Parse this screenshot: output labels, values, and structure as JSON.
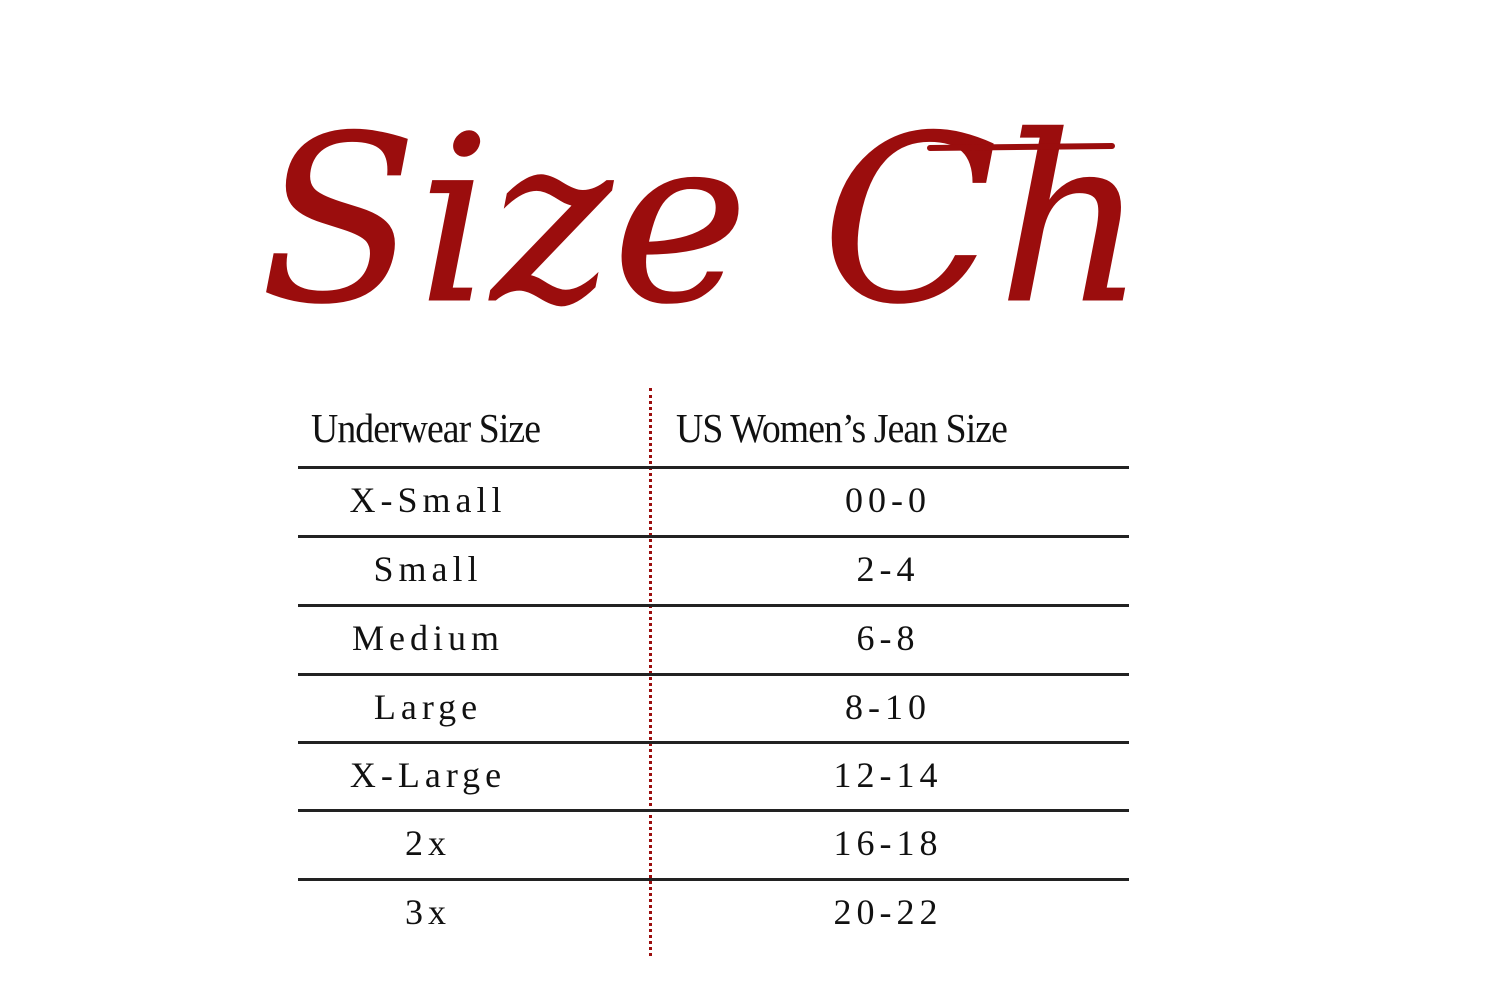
{
  "title": "Size Chart",
  "accent_color": "#9b0d0d",
  "table": {
    "headers": [
      "Underwear Size",
      "US Women’s Jean Size"
    ],
    "rows": [
      [
        "X-Small",
        "00-0"
      ],
      [
        "Small",
        "2-4"
      ],
      [
        "Medium",
        "6-8"
      ],
      [
        "Large",
        "8-10"
      ],
      [
        "X-Large",
        "12-14"
      ],
      [
        "2x",
        "16-18"
      ],
      [
        "3x",
        "20-22"
      ]
    ]
  }
}
